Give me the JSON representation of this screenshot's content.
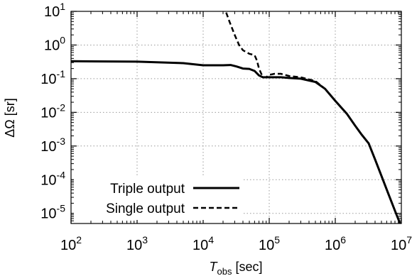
{
  "chart_data": {
    "type": "line",
    "title": "",
    "xlabel": {
      "main": "T",
      "sub": "obs",
      "unit": " [sec]"
    },
    "ylabel": "ΔΩ [sr]",
    "xscale": "log",
    "yscale": "log",
    "xlim": [
      100,
      10000000
    ],
    "ylim": [
      5e-06,
      10
    ],
    "grid": true,
    "legend_position": "bottom-left",
    "x_ticks": [
      {
        "value": 100,
        "base": "10",
        "exp": "2"
      },
      {
        "value": 1000,
        "base": "10",
        "exp": "3"
      },
      {
        "value": 10000,
        "base": "10",
        "exp": "4"
      },
      {
        "value": 100000,
        "base": "10",
        "exp": "5"
      },
      {
        "value": 1000000,
        "base": "10",
        "exp": "6"
      },
      {
        "value": 10000000,
        "base": "10",
        "exp": "7"
      }
    ],
    "y_ticks": [
      {
        "value": 10,
        "base": "10",
        "exp": "1"
      },
      {
        "value": 1,
        "base": "10",
        "exp": "0"
      },
      {
        "value": 0.1,
        "base": "10",
        "exp": "-1"
      },
      {
        "value": 0.01,
        "base": "10",
        "exp": "-2"
      },
      {
        "value": 0.001,
        "base": "10",
        "exp": "-3"
      },
      {
        "value": 0.0001,
        "base": "10",
        "exp": "-4"
      },
      {
        "value": 1e-05,
        "base": "10",
        "exp": "-5"
      }
    ],
    "series": [
      {
        "name": "Triple output",
        "style": "solid",
        "color": "#000000",
        "points": [
          [
            100,
            0.33
          ],
          [
            1000,
            0.32
          ],
          [
            5000,
            0.29
          ],
          [
            10000,
            0.25
          ],
          [
            20000,
            0.25
          ],
          [
            26000,
            0.255
          ],
          [
            32000,
            0.23
          ],
          [
            40000,
            0.2
          ],
          [
            50000,
            0.195
          ],
          [
            60000,
            0.17
          ],
          [
            70000,
            0.125
          ],
          [
            80000,
            0.11
          ],
          [
            100000,
            0.11
          ],
          [
            150000,
            0.11
          ],
          [
            200000,
            0.105
          ],
          [
            300000,
            0.1
          ],
          [
            500000,
            0.08
          ],
          [
            700000,
            0.05
          ],
          [
            1000000,
            0.022
          ],
          [
            1500000,
            0.009
          ],
          [
            2000000,
            0.004
          ],
          [
            2500000,
            0.0022
          ],
          [
            3200000,
            0.0012
          ],
          [
            4000000,
            0.0004
          ],
          [
            5000000,
            0.00013
          ],
          [
            6300000,
            4e-05
          ],
          [
            8000000,
            1.2e-05
          ],
          [
            10000000,
            4e-06
          ]
        ]
      },
      {
        "name": "Single output",
        "style": "dashed",
        "color": "#000000",
        "points": [
          [
            20000,
            15
          ],
          [
            22000,
            10
          ],
          [
            25000,
            5
          ],
          [
            30000,
            2
          ],
          [
            35000,
            1
          ],
          [
            40000,
            0.7
          ],
          [
            50000,
            0.55
          ],
          [
            60000,
            0.5
          ],
          [
            65000,
            0.35
          ],
          [
            70000,
            0.2
          ],
          [
            80000,
            0.11
          ],
          [
            90000,
            0.11
          ],
          [
            100000,
            0.13
          ],
          [
            120000,
            0.14
          ],
          [
            150000,
            0.14
          ],
          [
            200000,
            0.12
          ],
          [
            300000,
            0.11
          ],
          [
            500000,
            0.085
          ],
          [
            700000,
            0.05
          ],
          [
            1000000,
            0.022
          ],
          [
            1500000,
            0.009
          ],
          [
            2000000,
            0.004
          ],
          [
            2500000,
            0.0022
          ],
          [
            3200000,
            0.0012
          ],
          [
            4000000,
            0.0004
          ],
          [
            5000000,
            0.00013
          ],
          [
            6300000,
            4e-05
          ],
          [
            8000000,
            1.2e-05
          ],
          [
            10000000,
            4e-06
          ]
        ]
      }
    ]
  }
}
